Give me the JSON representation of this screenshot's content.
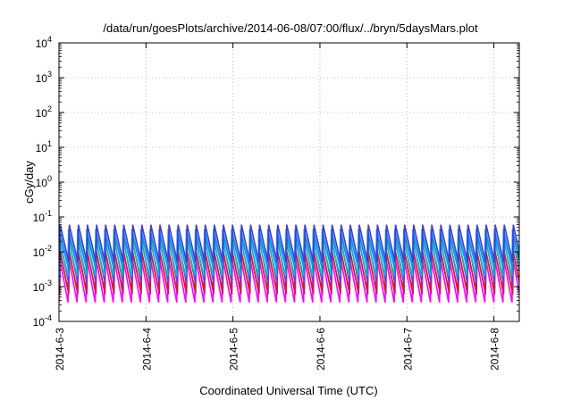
{
  "chart_data": {
    "type": "line",
    "title": "/data/run/goesPlots/archive/2014-06-08/07:00/flux/../bryn/5daysMars.plot",
    "xlabel": "Coordinated Universal Time (UTC)",
    "ylabel": "cGy/day",
    "yscale": "log",
    "ylim": [
      0.0001,
      10000
    ],
    "xlim": [
      "2014-06-03T00:00",
      "2014-06-08T07:00"
    ],
    "grid": true,
    "legend": "none",
    "x_ticks": [
      "2014-6-3",
      "2014-6-4",
      "2014-6-5",
      "2014-6-6",
      "2014-6-7",
      "2014-6-8"
    ],
    "y_ticks": [
      {
        "base": "10",
        "exp": "-4"
      },
      {
        "base": "10",
        "exp": "-3"
      },
      {
        "base": "10",
        "exp": "-2"
      },
      {
        "base": "10",
        "exp": "-1"
      },
      {
        "base": "10",
        "exp": "0"
      },
      {
        "base": "10",
        "exp": "1"
      },
      {
        "base": "10",
        "exp": "2"
      },
      {
        "base": "10",
        "exp": "3"
      },
      {
        "base": "10",
        "exp": "4"
      }
    ],
    "sawtooth_period_hours": 2.5,
    "series": [
      {
        "color": "#ff00ff",
        "peak": 0.007,
        "trough": 0.00035
      },
      {
        "color": "#c71585",
        "peak": 0.01,
        "trough": 0.0006
      },
      {
        "color": "#cc2222",
        "peak": 0.012,
        "trough": 0.0008
      },
      {
        "color": "#8a2be2",
        "peak": 0.02,
        "trough": 0.0012
      },
      {
        "color": "#00bcd4",
        "peak": 0.022,
        "trough": 0.002
      },
      {
        "color": "#009688",
        "peak": 0.03,
        "trough": 0.003
      },
      {
        "color": "#1e90ff",
        "peak": 0.045,
        "trough": 0.004
      },
      {
        "color": "#3f3fcf",
        "peak": 0.06,
        "trough": 0.005
      }
    ]
  }
}
